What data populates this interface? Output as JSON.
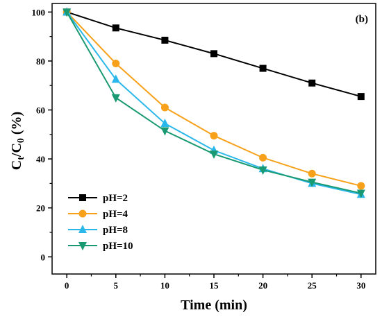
{
  "chart_data": {
    "type": "line",
    "panel_label": "(b)",
    "xlabel": "Time (min)",
    "ylabel": {
      "main": "C",
      "sub1": "t",
      "mid": "/C",
      "sub2": "0",
      "tail": " (%)"
    },
    "x": [
      0,
      5,
      10,
      15,
      20,
      25,
      30
    ],
    "xlim": [
      -1.5,
      31.5
    ],
    "ylim": [
      -7,
      103.5
    ],
    "xticks": [
      0,
      5,
      10,
      15,
      20,
      25,
      30
    ],
    "yticks": [
      0,
      20,
      40,
      60,
      80,
      100
    ],
    "grid": false,
    "legend_position": "bottom-left",
    "series": [
      {
        "name": "pH=2",
        "marker": "square",
        "color": "#000000",
        "values": [
          100,
          93.5,
          88.5,
          83,
          77,
          71,
          65.5
        ]
      },
      {
        "name": "pH=4",
        "marker": "circle",
        "color": "#f7a11b",
        "values": [
          100,
          79,
          61,
          49.5,
          40.5,
          34,
          29
        ]
      },
      {
        "name": "pH=8",
        "marker": "triangle-up",
        "color": "#2ab7ea",
        "values": [
          100,
          72.5,
          54.5,
          43.5,
          36,
          30,
          25.5
        ]
      },
      {
        "name": "pH=10",
        "marker": "triangle-down",
        "color": "#1a9a72",
        "values": [
          100,
          65,
          51.5,
          42,
          35.5,
          30.5,
          26
        ]
      }
    ]
  }
}
